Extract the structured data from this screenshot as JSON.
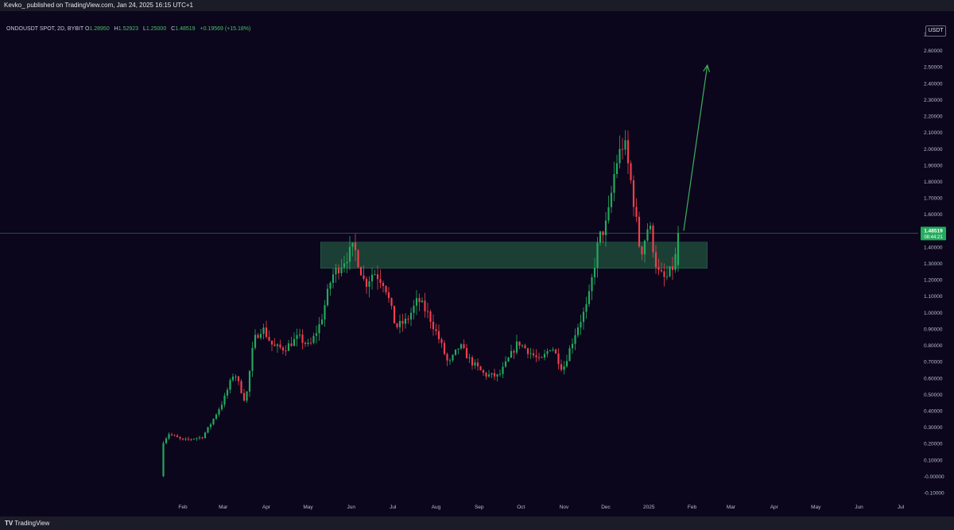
{
  "header": {
    "text": "Kevko_ published on TradingView.com, Jan 24, 2025 16:15 UTC+1"
  },
  "legend": {
    "symbol": "ONDOUSDT SPOT, 2D, BYBIT",
    "open_label": "O",
    "open": "1.28950",
    "high_label": "H",
    "high": "1.52923",
    "low_label": "L",
    "low": "1.25000",
    "close_label": "C",
    "close": "1.48519",
    "change": "+0.19569 (+15.18%)"
  },
  "currency_button": "USDT",
  "price_tag": {
    "price": "1.48519",
    "countdown": "08:44:21"
  },
  "footer": {
    "logo_mark": "TV",
    "logo_text": "TradingView"
  },
  "colors": {
    "background": "#0b061c",
    "up": "#22ab5d",
    "down": "#f03f4d",
    "zone_fill": "#1e4a3a",
    "arrow": "#3fae5c",
    "price_line": "#2f6c47",
    "axis_text": "#b9bccb"
  },
  "chart_data": {
    "type": "candlestick",
    "symbol": "ONDOUSDT SPOT",
    "timeframe": "2D",
    "exchange": "BYBIT",
    "y_axis": {
      "ticks": [
        "2.70000",
        "2.60000",
        "2.50000",
        "2.40000",
        "2.30000",
        "2.20000",
        "2.10000",
        "2.00000",
        "1.90000",
        "1.80000",
        "1.70000",
        "1.60000",
        "1.40000",
        "1.30000",
        "1.20000",
        "1.10000",
        "1.00000",
        "0.90000",
        "0.80000",
        "0.70000",
        "0.60000",
        "0.50000",
        "0.40000",
        "0.30000",
        "0.20000",
        "0.10000",
        "-0.00000",
        "-0.10000"
      ],
      "tick_values": [
        2.7,
        2.6,
        2.5,
        2.4,
        2.3,
        2.2,
        2.1,
        2.0,
        1.9,
        1.8,
        1.7,
        1.6,
        1.4,
        1.3,
        1.2,
        1.1,
        1.0,
        0.9,
        0.8,
        0.7,
        0.6,
        0.5,
        0.4,
        0.3,
        0.2,
        0.1,
        0.0,
        -0.1
      ],
      "range": [
        -0.13,
        2.78
      ]
    },
    "x_axis": {
      "ticks": [
        "Feb",
        "Mar",
        "Apr",
        "May",
        "Jun",
        "Jul",
        "Aug",
        "Sep",
        "Oct",
        "Nov",
        "Dec",
        "2025",
        "Feb",
        "Mar",
        "Apr",
        "May",
        "Jun",
        "Jul"
      ],
      "tick_dates": [
        "2024-02-01",
        "2024-03-01",
        "2024-04-01",
        "2024-05-01",
        "2024-06-01",
        "2024-07-01",
        "2024-08-01",
        "2024-09-01",
        "2024-10-01",
        "2024-11-01",
        "2024-12-01",
        "2025-01-01",
        "2025-02-01",
        "2025-03-01",
        "2025-04-01",
        "2025-05-01",
        "2025-06-01",
        "2025-07-01"
      ]
    },
    "first_candle_date": "2024-01-18",
    "candle_interval_days": 2,
    "close_path": [
      [
        "2024-01-18",
        0.21
      ],
      [
        "2024-01-22",
        0.26
      ],
      [
        "2024-02-01",
        0.22
      ],
      [
        "2024-02-15",
        0.24
      ],
      [
        "2024-02-21",
        0.32
      ],
      [
        "2024-03-01",
        0.46
      ],
      [
        "2024-03-09",
        0.64
      ],
      [
        "2024-03-17",
        0.45
      ],
      [
        "2024-03-23",
        0.83
      ],
      [
        "2024-03-29",
        0.91
      ],
      [
        "2024-04-06",
        0.79
      ],
      [
        "2024-04-14",
        0.78
      ],
      [
        "2024-04-24",
        0.85
      ],
      [
        "2024-05-02",
        0.79
      ],
      [
        "2024-05-10",
        0.94
      ],
      [
        "2024-05-18",
        1.22
      ],
      [
        "2024-05-26",
        1.31
      ],
      [
        "2024-06-03",
        1.4
      ],
      [
        "2024-06-11",
        1.17
      ],
      [
        "2024-06-17",
        1.25
      ],
      [
        "2024-06-25",
        1.18
      ],
      [
        "2024-07-03",
        0.91
      ],
      [
        "2024-07-11",
        0.95
      ],
      [
        "2024-07-19",
        1.08
      ],
      [
        "2024-07-27",
        0.98
      ],
      [
        "2024-08-04",
        0.82
      ],
      [
        "2024-08-10",
        0.68
      ],
      [
        "2024-08-18",
        0.8
      ],
      [
        "2024-08-26",
        0.7
      ],
      [
        "2024-09-05",
        0.62
      ],
      [
        "2024-09-15",
        0.61
      ],
      [
        "2024-09-21",
        0.7
      ],
      [
        "2024-09-29",
        0.82
      ],
      [
        "2024-10-07",
        0.76
      ],
      [
        "2024-10-15",
        0.7
      ],
      [
        "2024-10-23",
        0.8
      ],
      [
        "2024-10-31",
        0.65
      ],
      [
        "2024-11-10",
        0.9
      ],
      [
        "2024-11-18",
        1.05
      ],
      [
        "2024-11-26",
        1.45
      ],
      [
        "2024-12-02",
        1.55
      ],
      [
        "2024-12-08",
        1.9
      ],
      [
        "2024-12-14",
        2.05
      ],
      [
        "2024-12-20",
        1.75
      ],
      [
        "2024-12-26",
        1.35
      ],
      [
        "2025-01-01",
        1.55
      ],
      [
        "2025-01-07",
        1.25
      ],
      [
        "2025-01-13",
        1.2
      ],
      [
        "2025-01-19",
        1.29
      ],
      [
        "2025-01-23",
        1.48519
      ]
    ],
    "last_candle": {
      "open": 1.2895,
      "high": 1.52923,
      "low": 1.25,
      "close": 1.48519,
      "change": 0.19569,
      "change_pct": 15.18
    },
    "annotations": [
      {
        "type": "zone",
        "date_from": "2024-05-10",
        "date_to": "2025-02-12",
        "low": 1.27,
        "high": 1.43
      },
      {
        "type": "arrow",
        "from": {
          "date": "2025-01-26",
          "price": 1.5
        },
        "to": {
          "date": "2025-02-12",
          "price": 2.51
        }
      },
      {
        "type": "price_line",
        "price": 1.48519
      }
    ]
  }
}
